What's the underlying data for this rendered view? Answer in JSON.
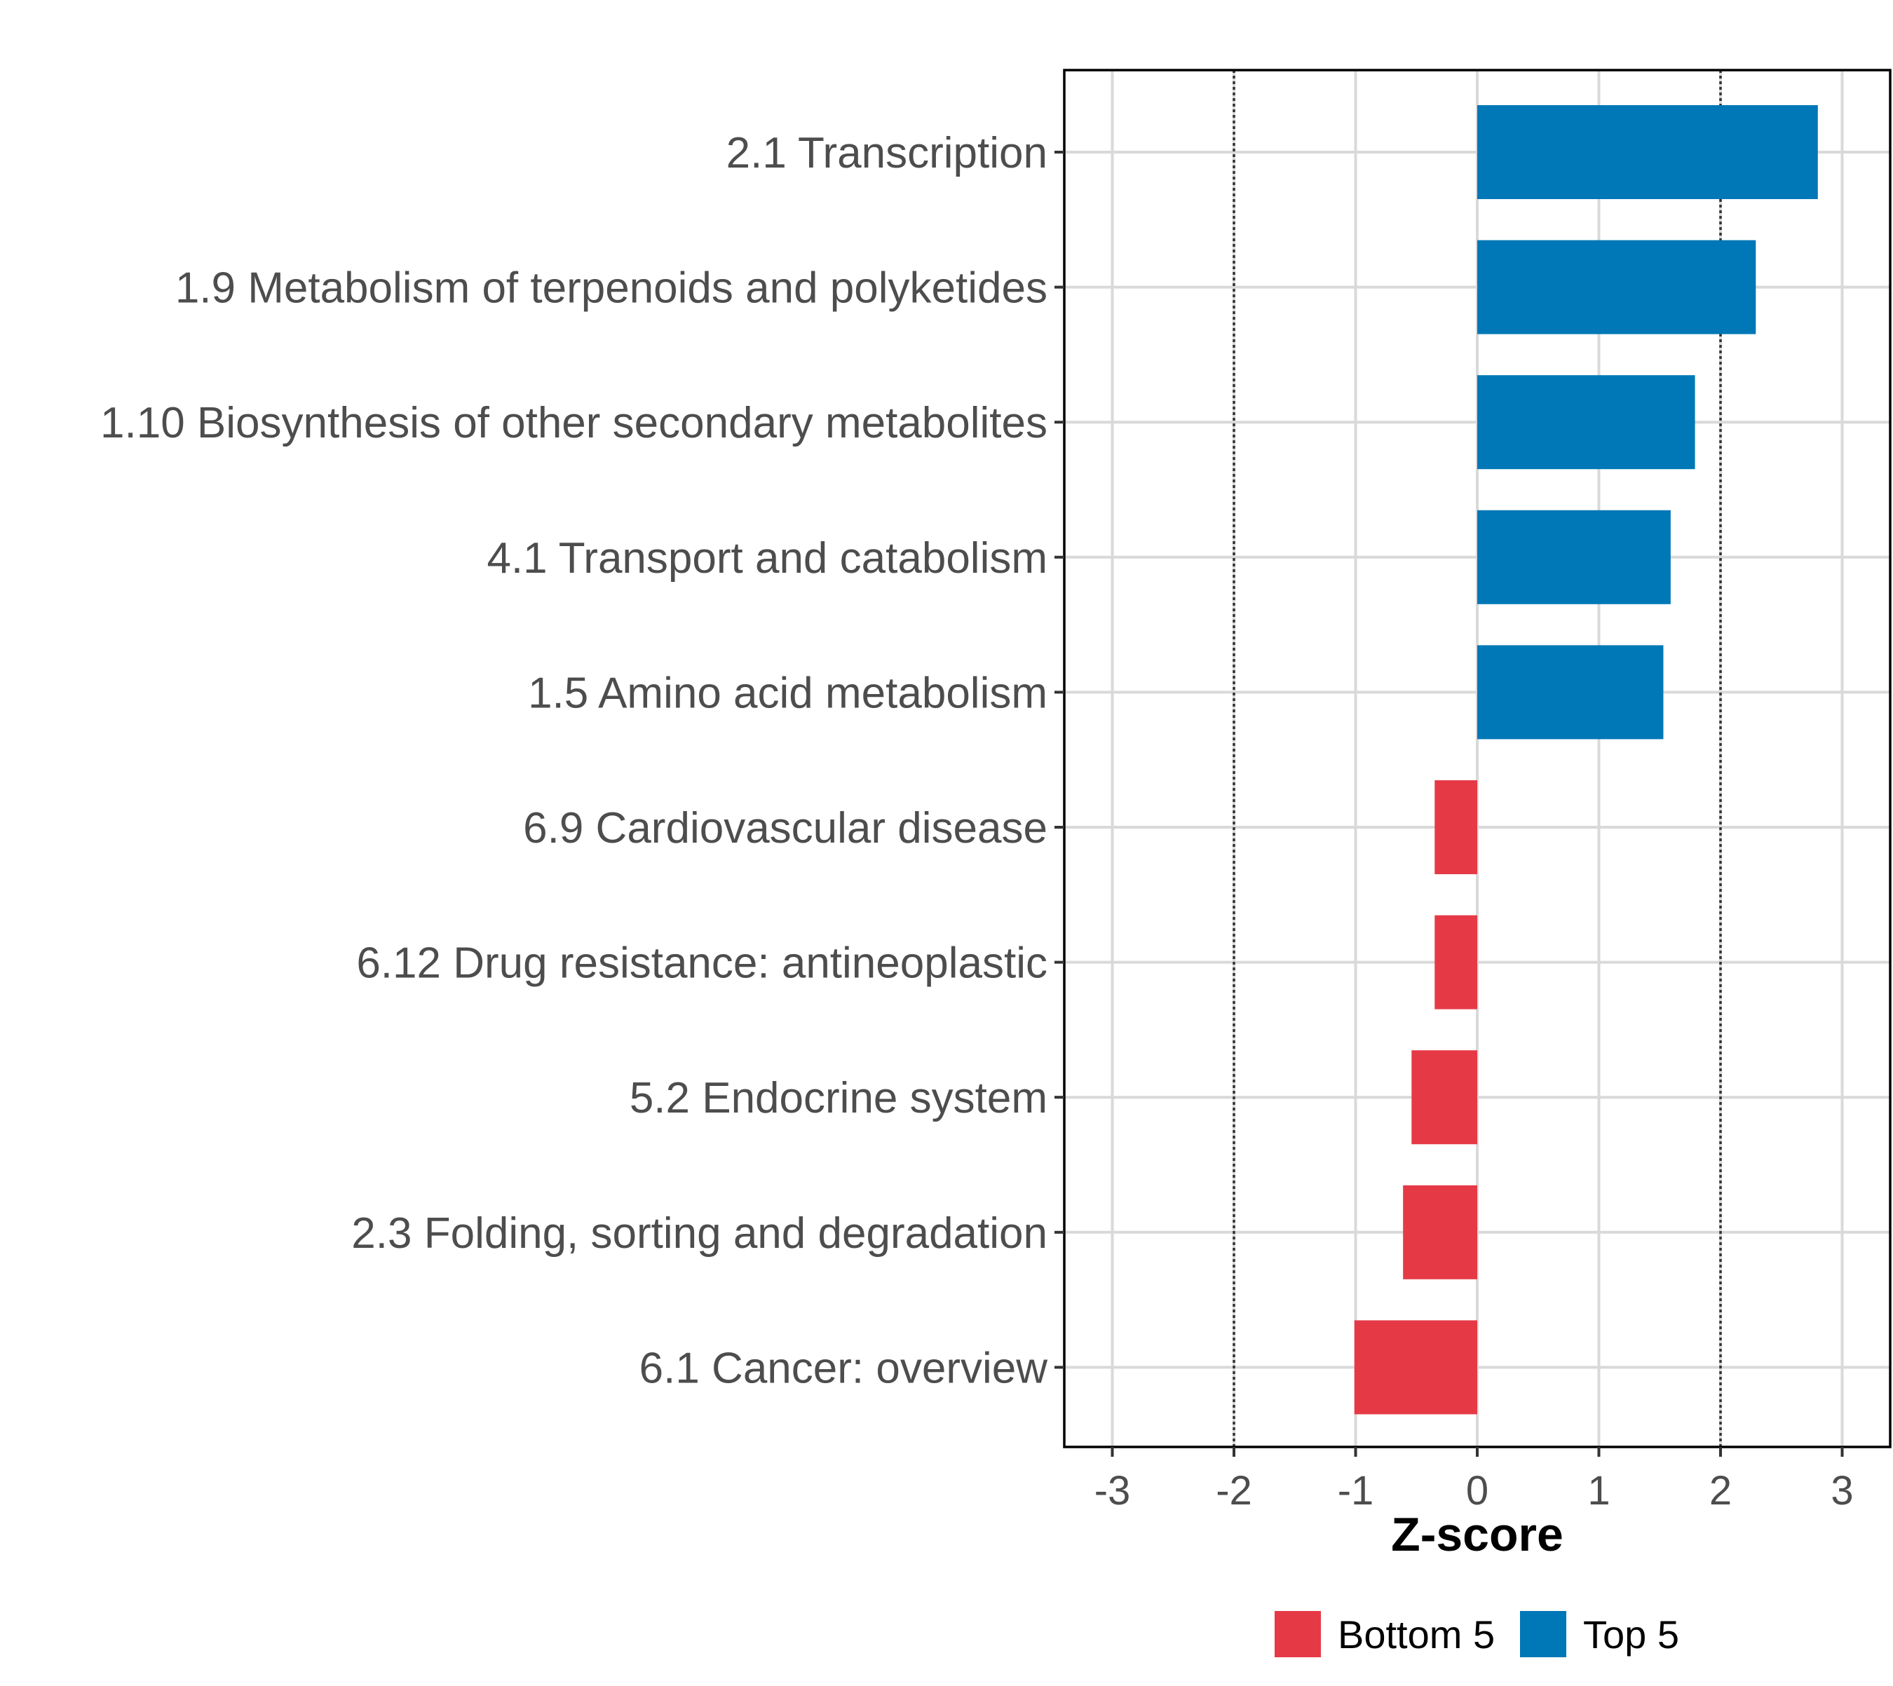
{
  "chart_data": {
    "type": "bar",
    "orientation": "horizontal",
    "title": "",
    "xlabel": "Z-score",
    "ylabel": "",
    "xlim": [
      -3.4,
      3.4
    ],
    "xticks": [
      -3,
      -2,
      -1,
      0,
      1,
      2,
      3
    ],
    "xtick_labels": [
      "-3",
      "-2",
      "-1",
      "0",
      "1",
      "2",
      "3"
    ],
    "reference_lines": [
      -2,
      2
    ],
    "grid": true,
    "legend_position": "bottom",
    "categories": [
      "2.1 Transcription",
      "1.9 Metabolism of terpenoids and polyketides",
      "1.10 Biosynthesis of other secondary metabolites",
      "4.1 Transport and catabolism",
      "1.5 Amino acid metabolism",
      "6.9 Cardiovascular disease",
      "6.12 Drug resistance: antineoplastic",
      "5.2 Endocrine system",
      "2.3 Folding, sorting and degradation",
      "6.1 Cancer: overview"
    ],
    "values": [
      2.8,
      2.29,
      1.79,
      1.59,
      1.53,
      -0.35,
      -0.35,
      -0.54,
      -0.61,
      -1.01
    ],
    "groups": [
      "Top 5",
      "Top 5",
      "Top 5",
      "Top 5",
      "Top 5",
      "Bottom 5",
      "Bottom 5",
      "Bottom 5",
      "Bottom 5",
      "Bottom 5"
    ],
    "legend": [
      {
        "name": "Bottom 5",
        "color": "#e63946"
      },
      {
        "name": "Top 5",
        "color": "#0077b6"
      }
    ]
  }
}
